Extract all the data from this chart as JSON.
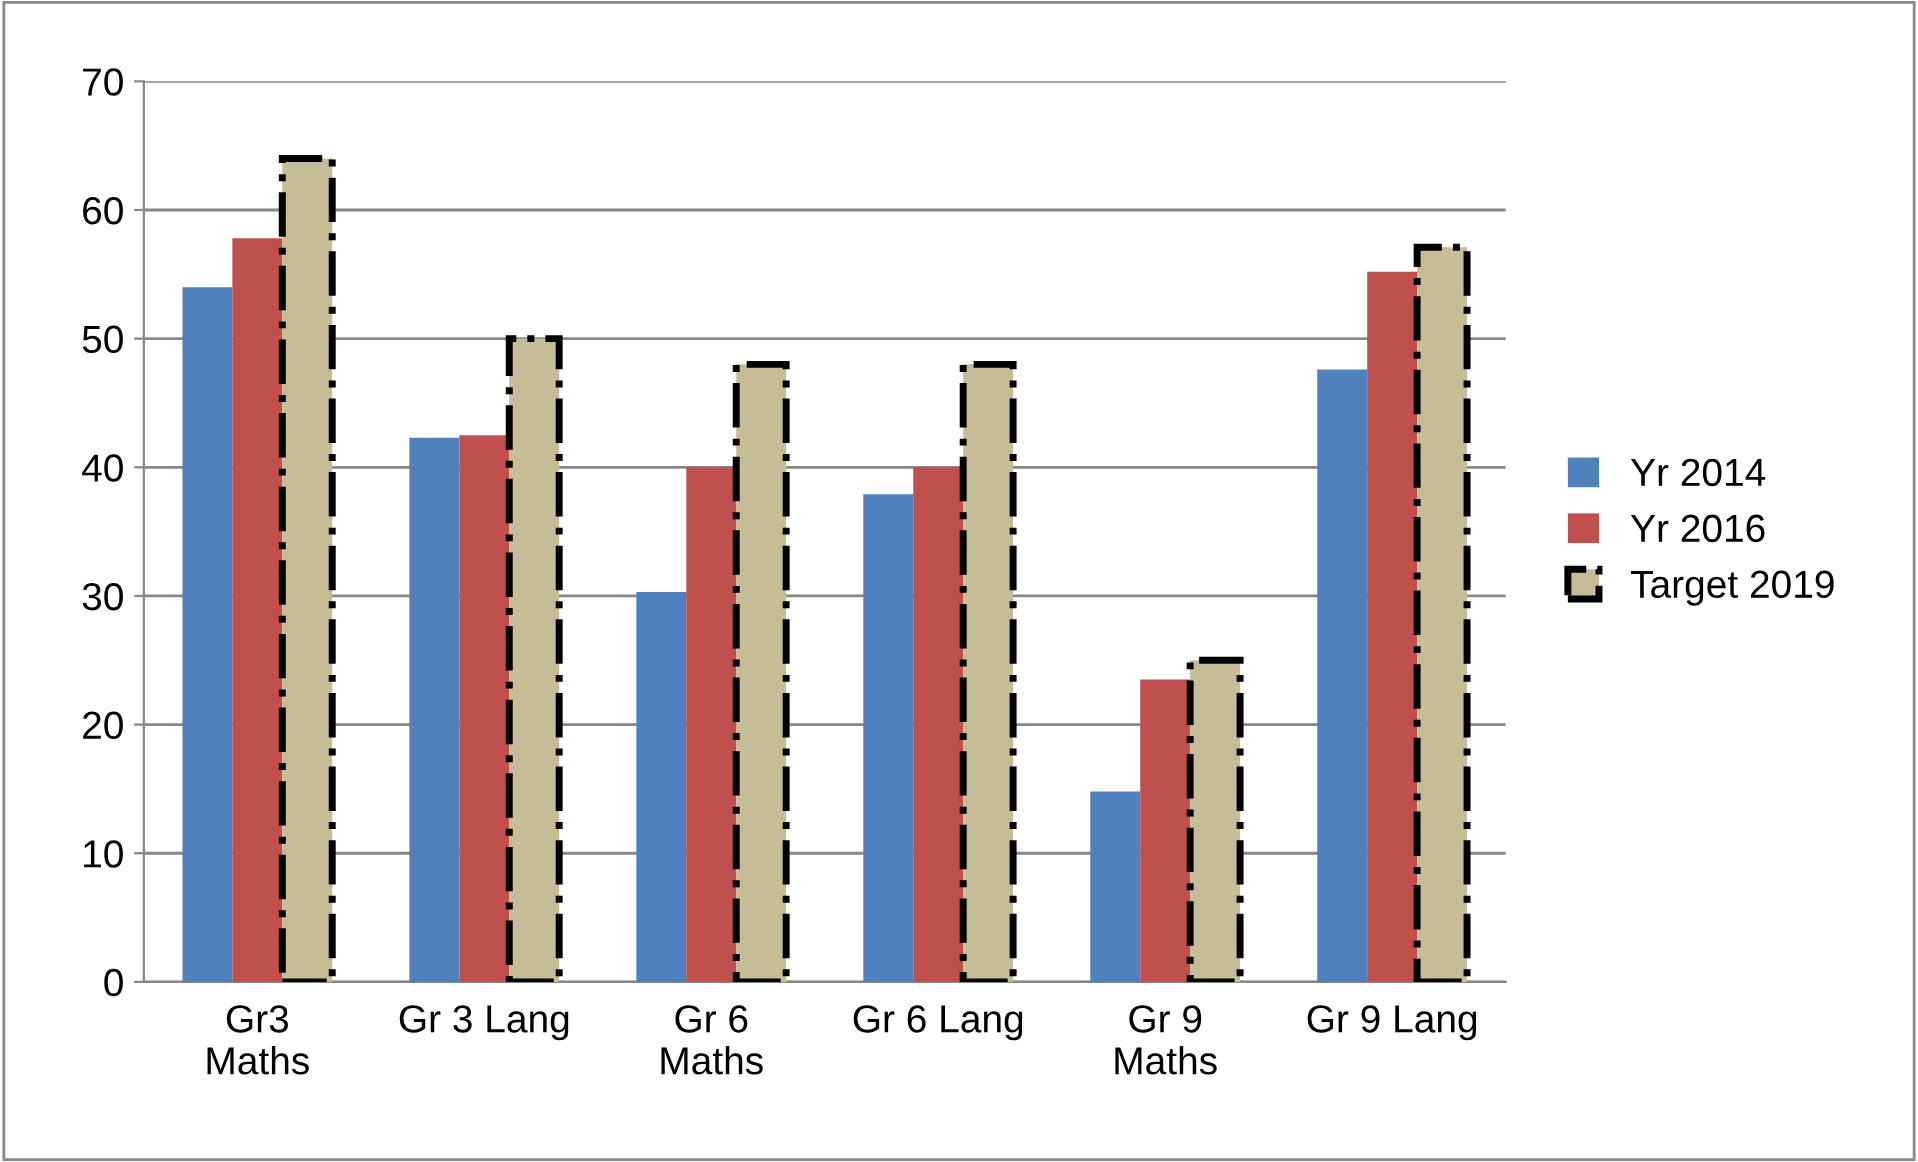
{
  "chart_data": {
    "type": "bar",
    "categories": [
      "Gr3\nMaths",
      "Gr 3 Lang",
      "Gr 6\nMaths",
      "Gr 6 Lang",
      "Gr 9\nMaths",
      "Gr 9 Lang"
    ],
    "series": [
      {
        "name": "Yr 2014",
        "color": "#4f81bd",
        "values": [
          54,
          42.3,
          30.3,
          37.9,
          14.8,
          47.6
        ]
      },
      {
        "name": "Yr 2016",
        "color": "#c0504d",
        "values": [
          57.8,
          42.5,
          40,
          40,
          23.5,
          55.2
        ]
      },
      {
        "name": "Target 2019",
        "color": "#c4bd97",
        "line_style": "dashdot",
        "values": [
          64,
          50,
          48,
          48,
          25,
          57.1
        ]
      }
    ],
    "ylim": [
      0,
      70
    ],
    "yticks": [
      0,
      10,
      20,
      30,
      40,
      50,
      60,
      70
    ],
    "grid": "y",
    "legend": "right"
  }
}
